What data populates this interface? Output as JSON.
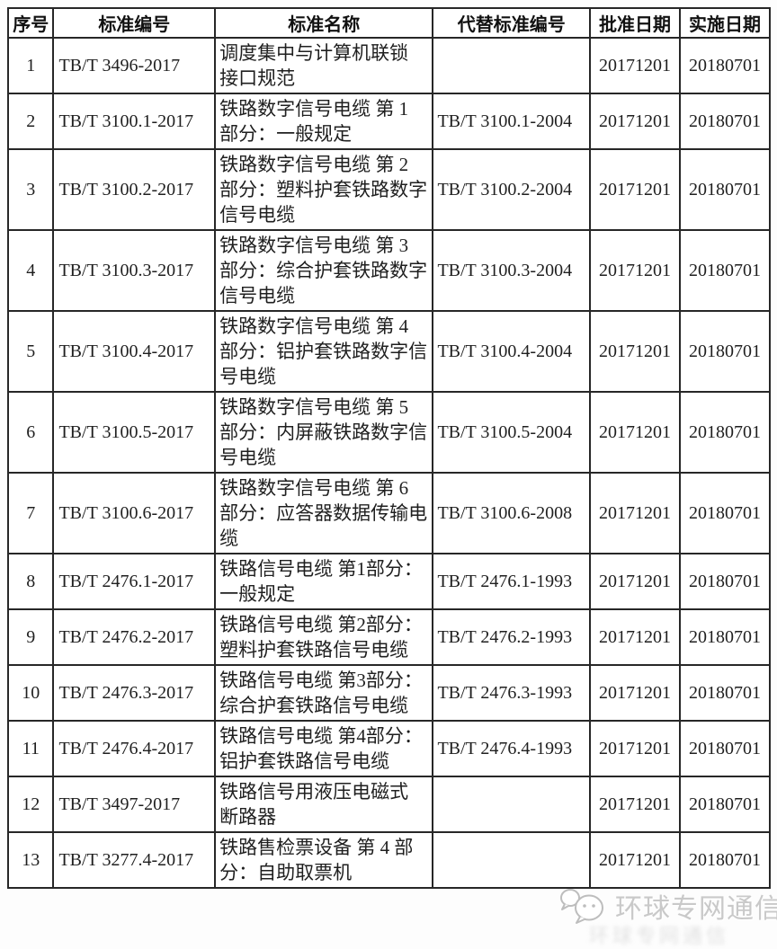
{
  "table": {
    "headers": [
      {
        "key": "no",
        "label": "序号"
      },
      {
        "key": "code",
        "label": "标准编号"
      },
      {
        "key": "name",
        "label": "标准名称"
      },
      {
        "key": "replaced",
        "label": "代替标准编号"
      },
      {
        "key": "approved",
        "label": "批准日期"
      },
      {
        "key": "implemented",
        "label": "实施日期"
      }
    ],
    "rows": [
      {
        "no": "1",
        "code": "TB/T 3496-2017",
        "name": "调度集中与计算机联锁\n接口规范",
        "replaced": "",
        "approved": "20171201",
        "implemented": "20180701"
      },
      {
        "no": "2",
        "code": "TB/T 3100.1-2017",
        "name": "铁路数字信号电缆 第 1\n部分：一般规定",
        "replaced": "TB/T 3100.1-2004",
        "approved": "20171201",
        "implemented": "20180701"
      },
      {
        "no": "3",
        "code": "TB/T 3100.2-2017",
        "name": "铁路数字信号电缆 第 2\n部分：塑料护套铁路数字\n信号电缆",
        "replaced": "TB/T 3100.2-2004",
        "approved": "20171201",
        "implemented": "20180701"
      },
      {
        "no": "4",
        "code": "TB/T 3100.3-2017",
        "name": "铁路数字信号电缆 第 3\n部分：综合护套铁路数字\n信号电缆",
        "replaced": "TB/T 3100.3-2004",
        "approved": "20171201",
        "implemented": "20180701"
      },
      {
        "no": "5",
        "code": "TB/T 3100.4-2017",
        "name": "铁路数字信号电缆 第 4\n部分：铝护套铁路数字信\n号电缆",
        "replaced": "TB/T 3100.4-2004",
        "approved": "20171201",
        "implemented": "20180701"
      },
      {
        "no": "6",
        "code": "TB/T 3100.5-2017",
        "name": "铁路数字信号电缆 第 5\n部分：内屏蔽铁路数字信\n号电缆",
        "replaced": "TB/T 3100.5-2004",
        "approved": "20171201",
        "implemented": "20180701"
      },
      {
        "no": "7",
        "code": "TB/T 3100.6-2017",
        "name": "铁路数字信号电缆 第 6\n部分：应答器数据传输电\n缆",
        "replaced": "TB/T 3100.6-2008",
        "approved": "20171201",
        "implemented": "20180701"
      },
      {
        "no": "8",
        "code": "TB/T 2476.1-2017",
        "name": "铁路信号电缆 第1部分：\n一般规定",
        "replaced": "TB/T 2476.1-1993",
        "approved": "20171201",
        "implemented": "20180701"
      },
      {
        "no": "9",
        "code": "TB/T 2476.2-2017",
        "name": "铁路信号电缆 第2部分：\n塑料护套铁路信号电缆",
        "replaced": "TB/T 2476.2-1993",
        "approved": "20171201",
        "implemented": "20180701"
      },
      {
        "no": "10",
        "code": "TB/T 2476.3-2017",
        "name": "铁路信号电缆 第3部分：\n综合护套铁路信号电缆",
        "replaced": "TB/T 2476.3-1993",
        "approved": "20171201",
        "implemented": "20180701"
      },
      {
        "no": "11",
        "code": "TB/T 2476.4-2017",
        "name": "铁路信号电缆 第4部分：\n铝护套铁路信号电缆",
        "replaced": "TB/T 2476.4-1993",
        "approved": "20171201",
        "implemented": "20180701"
      },
      {
        "no": "12",
        "code": "TB/T 3497-2017",
        "name": "铁路信号用液压电磁式\n断路器",
        "replaced": "",
        "approved": "20171201",
        "implemented": "20180701"
      },
      {
        "no": "13",
        "code": "TB/T 3277.4-2017",
        "name": "铁路售检票设备 第 4 部\n分：自助取票机",
        "replaced": "",
        "approved": "20171201",
        "implemented": "20180701"
      }
    ]
  },
  "watermark": {
    "text": "环球专网通信",
    "icon": "wechat-icon",
    "color": "#c9c9c9"
  },
  "colors": {
    "table_border": "#272727",
    "text": "#1f1f1f",
    "background": "#fdfdfd"
  }
}
